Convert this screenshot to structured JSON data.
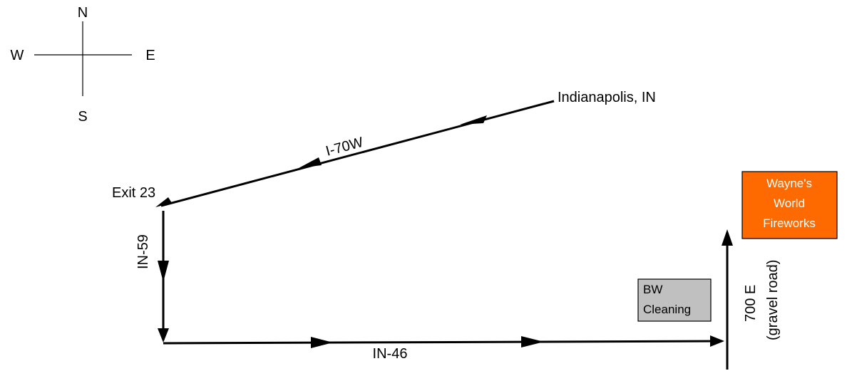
{
  "compass": {
    "north": "N",
    "south": "S",
    "east": "E",
    "west": "W"
  },
  "places": {
    "origin": "Indianapolis, IN",
    "exit": "Exit 23"
  },
  "roads": {
    "interstate": "I-70W",
    "state_route_north_south": "IN-59",
    "state_route_east_west": "IN-46",
    "county_road": "700 E",
    "county_road_note": "(gravel road)"
  },
  "landmarks": {
    "cleaner": {
      "line1": "BW",
      "line2": "Cleaning",
      "color": "#c0c0c0"
    },
    "destination": {
      "line1": "Wayne's",
      "line2": "World",
      "line3": "Fireworks",
      "color": "#ff6a00",
      "text_color": "#ffffff"
    }
  }
}
